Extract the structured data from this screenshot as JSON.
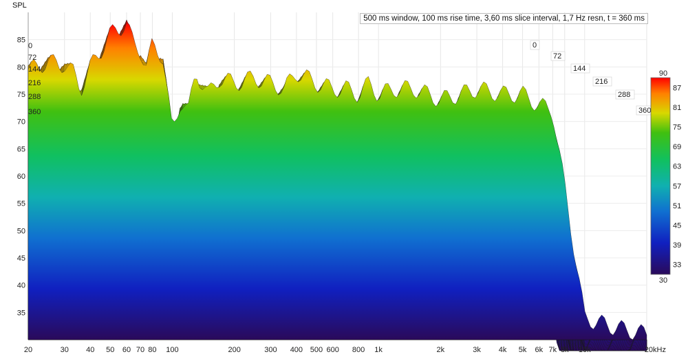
{
  "chart_data": {
    "type": "waterfall",
    "ylabel": "SPL",
    "info": "500 ms window, 100 ms rise time, 3,60 ms slice interval, 1,7 Hz resn, t = 360 ms",
    "x_scale": "log",
    "xlim": [
      20,
      20000
    ],
    "x_ticks": [
      "20",
      "30",
      "40",
      "50",
      "60",
      "70",
      "80",
      "100",
      "200",
      "300",
      "400",
      "500",
      "600",
      "800",
      "1k",
      "2k",
      "3k",
      "4k",
      "5k",
      "6k",
      "7k",
      "8k",
      "10k",
      "20kHz"
    ],
    "x_tick_values": [
      20,
      30,
      40,
      50,
      60,
      70,
      80,
      100,
      200,
      300,
      400,
      500,
      600,
      800,
      1000,
      2000,
      3000,
      4000,
      5000,
      6000,
      7000,
      8000,
      10000,
      20000
    ],
    "ylim": [
      30,
      90
    ],
    "y_ticks": [
      35,
      40,
      45,
      50,
      55,
      60,
      65,
      70,
      75,
      80,
      85
    ],
    "time_ticks_ms": [
      "0",
      "72",
      "144",
      "216",
      "288",
      "360"
    ],
    "colorbar": {
      "min": 30,
      "max": 90,
      "ticks": [
        "90",
        "87",
        "81",
        "75",
        "69",
        "63",
        "57",
        "51",
        "45",
        "39",
        "33",
        "30"
      ],
      "colors": [
        "#ff0000",
        "#ff8000",
        "#ffff00",
        "#00cc00",
        "#00cccc",
        "#0000cc",
        "#330066"
      ]
    },
    "front_slice": {
      "freq_hz": [
        20,
        22,
        25,
        28,
        30,
        33,
        36,
        40,
        45,
        50,
        55,
        60,
        65,
        70,
        75,
        80,
        90,
        100,
        110,
        120,
        130,
        150,
        170,
        200,
        250,
        300,
        350,
        400,
        450,
        500,
        600,
        700,
        800,
        900,
        1000,
        1200,
        1500,
        2000,
        2500,
        3000,
        4000,
        5000,
        6000,
        7000,
        8000,
        10000,
        12000,
        15000,
        20000
      ],
      "spl_db": [
        79.5,
        80,
        81,
        80.5,
        80.5,
        79,
        76,
        80,
        83,
        86,
        87,
        88,
        84,
        83,
        80,
        84,
        82,
        68,
        74,
        72,
        79,
        75,
        78,
        77,
        78,
        77,
        76,
        79,
        78,
        77,
        76,
        76,
        75,
        77,
        75,
        76,
        76,
        74,
        75,
        76,
        75,
        75,
        73,
        72,
        58,
        34,
        33,
        32,
        31
      ]
    }
  }
}
